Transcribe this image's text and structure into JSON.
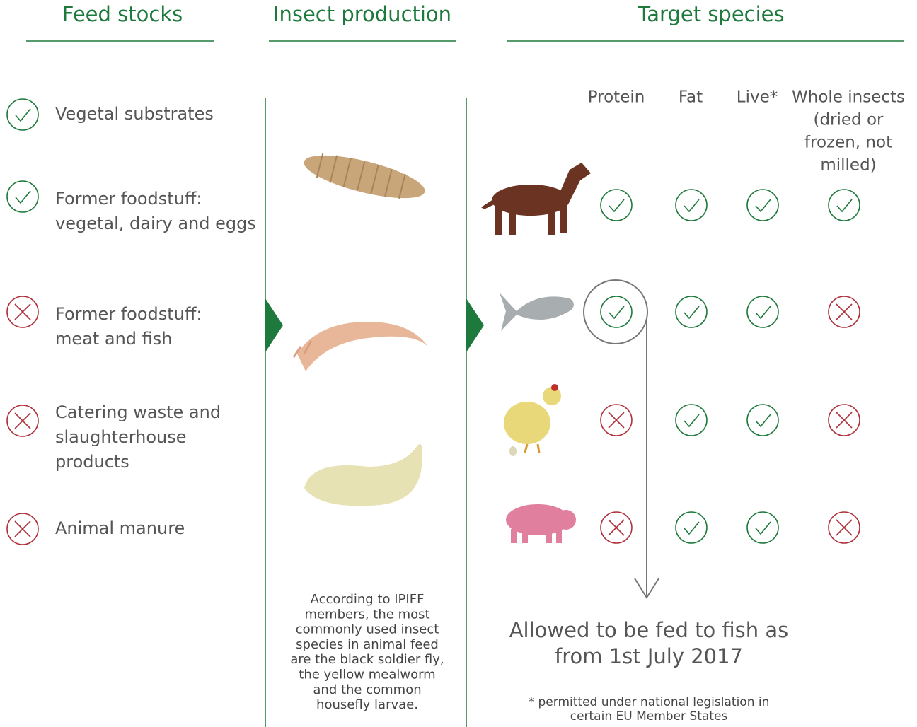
{
  "headers": [
    "Feed stocks",
    "Insect production",
    "Target species"
  ],
  "feedstocks": [
    {
      "lines": [
        "Vegetal substrates"
      ],
      "allowed": true
    },
    {
      "lines": [
        "Former foodstuff:",
        "vegetal, dairy and eggs"
      ],
      "allowed": true
    },
    {
      "lines": [
        "Former foodstuff:",
        "meat and fish"
      ],
      "allowed": false
    },
    {
      "lines": [
        "Catering waste and",
        "slaughterhouse",
        "products"
      ],
      "allowed": false
    },
    {
      "lines": [
        "Animal manure"
      ],
      "allowed": false
    }
  ],
  "insect_note": [
    "According to IPIFF",
    "members, the most",
    "commonly used insect",
    "species in animal feed",
    "are the black soldier fly,",
    "the yellow mealworm",
    "and the common",
    "housefly larvae."
  ],
  "columns": [
    [
      "Protein"
    ],
    [
      "Fat"
    ],
    [
      "Live*"
    ],
    [
      "Whole insects",
      "(dried or",
      "frozen, not",
      "milled)"
    ]
  ],
  "rows": [
    [
      true,
      true,
      true,
      true
    ],
    [
      true,
      true,
      true,
      false
    ],
    [
      false,
      true,
      true,
      false
    ],
    [
      false,
      true,
      true,
      false
    ]
  ],
  "callout": [
    "Allowed to be fed to fish as",
    "from 1st July 2017"
  ],
  "footnote": [
    "* permitted under national legislation in",
    "certain EU Member States"
  ]
}
